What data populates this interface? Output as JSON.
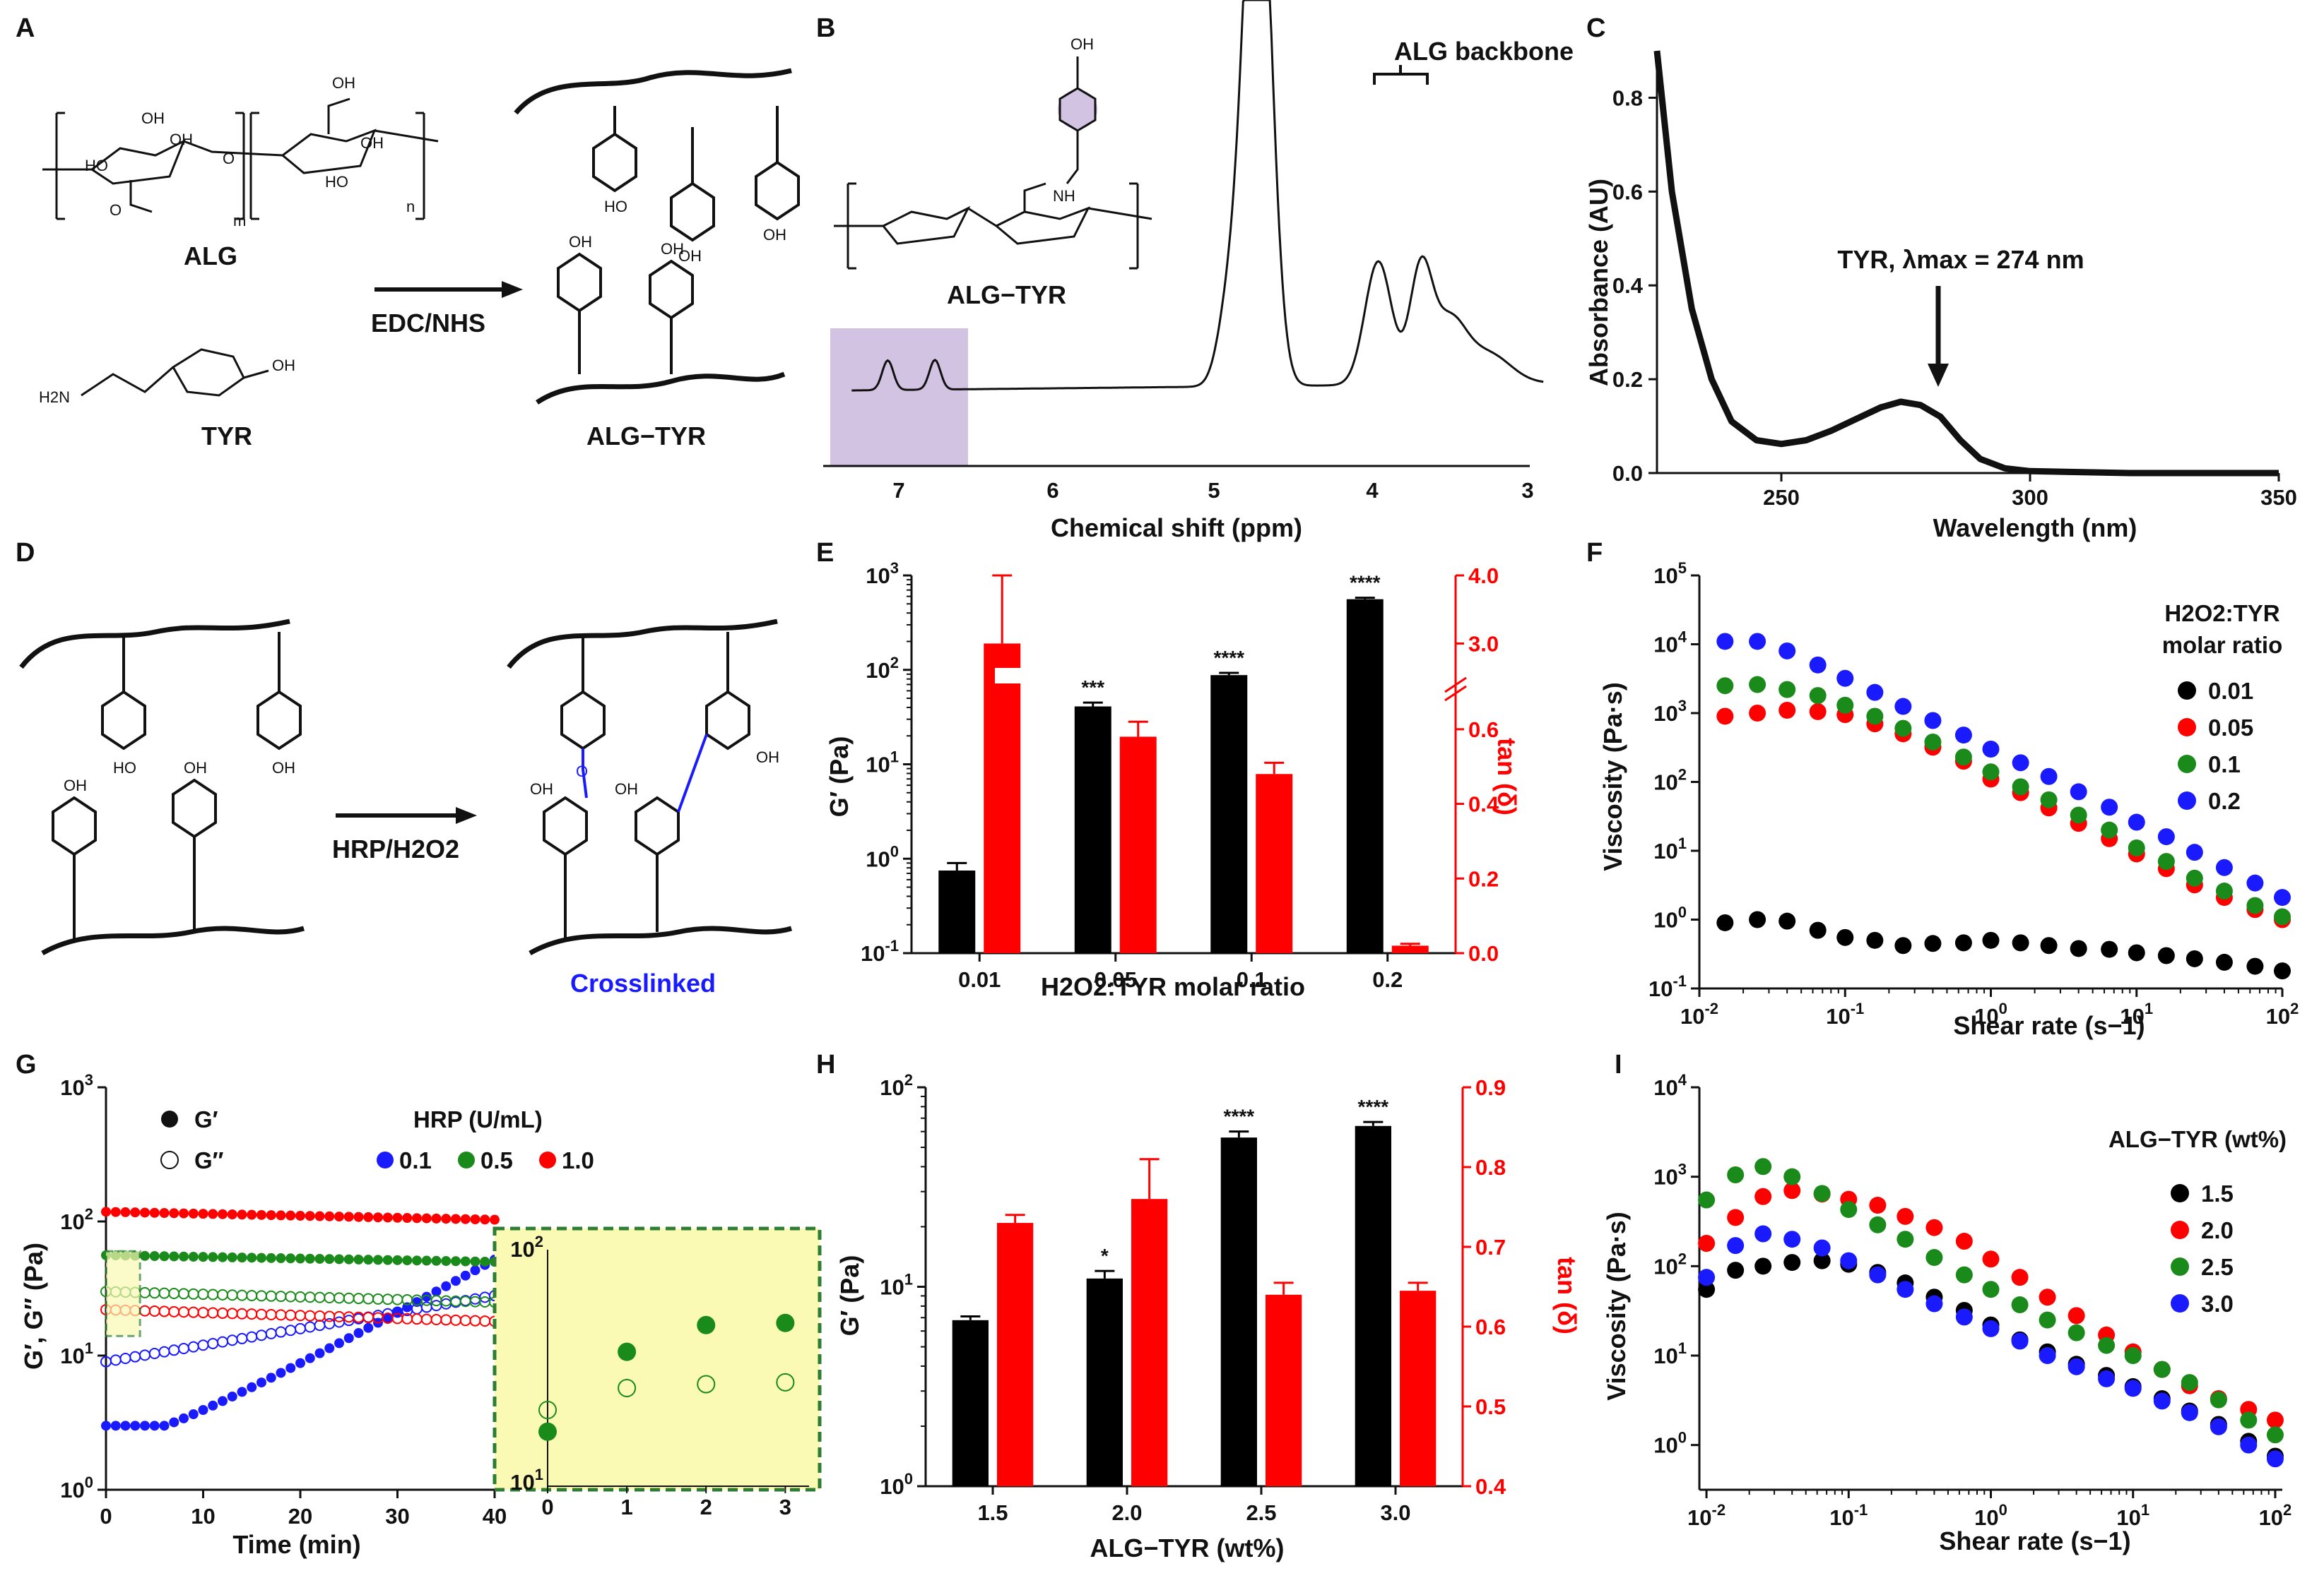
{
  "colors": {
    "black": "#000000",
    "red": "#ff0000",
    "green": "#1a8a1a",
    "blue": "#1a1aff",
    "purple": "#c8b4dc",
    "inset_bg": "#fafab4",
    "inset_border": "#2e7d32",
    "crosslink": "#1a1aff"
  },
  "labels": {
    "A": "A",
    "B": "B",
    "C": "C",
    "D": "D",
    "E": "E",
    "F": "F",
    "G": "G",
    "H": "H",
    "I": "I"
  },
  "panel_a": {
    "alg": "ALG",
    "tyr": "TYR",
    "reagent": "EDC/NHS",
    "product": "ALG−TYR",
    "oh": "OH",
    "ho": "HO",
    "o": "O",
    "h2n": "H2N",
    "m": "m",
    "n": "n"
  },
  "panel_b": {
    "annotation": "ALG backbone",
    "molecule": "ALG−TYR",
    "nh": "NH",
    "oh": "OH",
    "xlabel": "Chemical shift (ppm)",
    "ticks": [
      "7",
      "6",
      "5",
      "4",
      "3"
    ]
  },
  "panel_c": {
    "xlabel": "Wavelength (nm)",
    "ylabel": "Absorbance (AU)",
    "annotation": "TYR, λmax = 274 nm",
    "xticks": [
      "250",
      "300",
      "350"
    ],
    "yticks": [
      "0.0",
      "0.2",
      "0.4",
      "0.6",
      "0.8"
    ]
  },
  "panel_d": {
    "reagent": "HRP/H2O2",
    "crosslinked": "Crosslinked",
    "oh": "OH",
    "o": "O"
  },
  "panel_e": {
    "xlabel": "H2O2:TYR molar ratio",
    "ylabel": "G′ (Pa)",
    "ylabel_right": "tan (δ)",
    "stars": [
      "***",
      "****",
      "****"
    ]
  },
  "panel_f": {
    "xlabel": "Shear rate (s−1)",
    "ylabel": "Viscosity (Pa·s)",
    "legend_title_1": "H2O2:TYR",
    "legend_title_2": "molar ratio",
    "legend": [
      "0.01",
      "0.05",
      "0.1",
      "0.2"
    ]
  },
  "panel_g": {
    "xlabel": "Time (min)",
    "ylabel": "G′, G″ (Pa)",
    "gp": "G′",
    "gpp": "G″",
    "hrp_title": "HRP (U/mL)",
    "hrp": [
      "0.1",
      "0.5",
      "1.0"
    ],
    "xticks": [
      "0",
      "10",
      "20",
      "30",
      "40"
    ],
    "inset_xticks": [
      "0",
      "1",
      "2",
      "3"
    ]
  },
  "panel_h": {
    "xlabel": "ALG−TYR (wt%)",
    "ylabel": "G′ (Pa)",
    "ylabel_right": "tan (δ)",
    "stars": [
      "*",
      "****",
      "****"
    ]
  },
  "panel_i": {
    "xlabel": "Shear rate (s−1)",
    "ylabel": "Viscosity (Pa·s)",
    "legend_title": "ALG−TYR (wt%)",
    "legend": [
      "1.5",
      "2.0",
      "2.5",
      "3.0"
    ]
  },
  "chart_data": [
    {
      "id": "C",
      "type": "line",
      "title": "",
      "xlabel": "Wavelength (nm)",
      "ylabel": "Absorbance (AU)",
      "xlim": [
        225,
        350
      ],
      "ylim": [
        0,
        0.9
      ],
      "x": [
        225,
        228,
        232,
        236,
        240,
        245,
        250,
        255,
        260,
        265,
        270,
        274,
        278,
        282,
        286,
        290,
        295,
        300,
        320,
        350
      ],
      "y": [
        0.9,
        0.6,
        0.35,
        0.2,
        0.11,
        0.07,
        0.062,
        0.07,
        0.09,
        0.115,
        0.14,
        0.152,
        0.145,
        0.12,
        0.07,
        0.03,
        0.01,
        0.004,
        0.0,
        0.0
      ]
    },
    {
      "id": "E",
      "type": "bar",
      "categories": [
        "0.01",
        "0.05",
        "0.1",
        "0.2"
      ],
      "ylabel": "G′ (Pa)",
      "ylim_log": [
        0.1,
        1000
      ],
      "series": [
        {
          "name": "G′",
          "values": [
            0.75,
            41,
            88,
            560
          ],
          "errors": [
            0.15,
            4,
            5,
            20
          ]
        },
        {
          "name": "tan (δ)",
          "axis": "right",
          "values": [
            3.0,
            0.58,
            0.48,
            0.02
          ],
          "errors": [
            1.0,
            0.04,
            0.03,
            0.005
          ]
        }
      ],
      "right_ylim": [
        0.0,
        4.0
      ],
      "right_ticks": [
        "0.0",
        "0.2",
        "0.4",
        "0.6",
        "3.0",
        "4.0"
      ]
    },
    {
      "id": "F",
      "type": "scatter",
      "xlabel": "Shear rate (s−1)",
      "ylabel": "Viscosity (Pa·s)",
      "xlim_log": [
        0.01,
        100
      ],
      "ylim_log": [
        0.1,
        100000
      ],
      "x": [
        0.015,
        0.025,
        0.04,
        0.065,
        0.1,
        0.16,
        0.25,
        0.4,
        0.65,
        1,
        1.6,
        2.5,
        4,
        6.5,
        10,
        16,
        25,
        40,
        65,
        100
      ],
      "series": [
        {
          "name": "0.01",
          "values": [
            0.9,
            1.0,
            0.95,
            0.7,
            0.55,
            0.5,
            0.42,
            0.45,
            0.46,
            0.5,
            0.46,
            0.42,
            0.38,
            0.37,
            0.33,
            0.3,
            0.27,
            0.24,
            0.21,
            0.18
          ]
        },
        {
          "name": "0.05",
          "values": [
            900,
            1000,
            1100,
            1050,
            950,
            700,
            500,
            320,
            200,
            110,
            70,
            42,
            25,
            15,
            9,
            5.5,
            3.2,
            2.1,
            1.4,
            1.0
          ]
        },
        {
          "name": "0.1",
          "values": [
            2500,
            2600,
            2200,
            1800,
            1300,
            900,
            600,
            380,
            230,
            140,
            85,
            55,
            33,
            20,
            11,
            7,
            4,
            2.6,
            1.6,
            1.1
          ]
        },
        {
          "name": "0.2",
          "values": [
            11000,
            11000,
            8000,
            5000,
            3200,
            2000,
            1250,
            780,
            480,
            300,
            190,
            120,
            72,
            43,
            26,
            16,
            9.5,
            5.7,
            3.4,
            2.1
          ]
        }
      ]
    },
    {
      "id": "G",
      "type": "scatter",
      "xlabel": "Time (min)",
      "ylabel": "G′, G″ (Pa)",
      "xlim": [
        0,
        40
      ],
      "ylim_log": [
        1,
        1000
      ],
      "series": [
        {
          "name": "0.1 G′",
          "start": 3,
          "end": 52
        },
        {
          "name": "0.1 G″",
          "start": 9,
          "end": 28
        },
        {
          "name": "0.5 G′",
          "start": 56,
          "end": 50
        },
        {
          "name": "0.5 G″",
          "start": 30,
          "end": 25
        },
        {
          "name": "1.0 G′",
          "start": 118,
          "end": 103
        },
        {
          "name": "1.0 G″",
          "start": 22,
          "end": 18
        }
      ],
      "inset": {
        "x": [
          0,
          1,
          2,
          3
        ],
        "gp": [
          17,
          37,
          48,
          49
        ],
        "gpp": [
          21,
          26,
          27,
          27.5
        ]
      }
    },
    {
      "id": "H",
      "type": "bar",
      "categories": [
        "1.5",
        "2.0",
        "2.5",
        "3.0"
      ],
      "ylabel": "G′ (Pa)",
      "ylim_log": [
        1,
        100
      ],
      "series": [
        {
          "name": "G′",
          "values": [
            6.8,
            11,
            56,
            64
          ],
          "errors": [
            0.3,
            1.0,
            4,
            3
          ]
        },
        {
          "name": "tan (δ)",
          "axis": "right",
          "values": [
            0.73,
            0.76,
            0.64,
            0.645
          ],
          "errors": [
            0.01,
            0.05,
            0.015,
            0.01
          ]
        }
      ],
      "right_ylim": [
        0.4,
        0.9
      ]
    },
    {
      "id": "I",
      "type": "scatter",
      "xlabel": "Shear rate (s−1)",
      "ylabel": "Viscosity (Pa·s)",
      "xlim_log": [
        0.01,
        100
      ],
      "ylim_log": [
        0.3,
        10000
      ],
      "x": [
        0.01,
        0.016,
        0.025,
        0.04,
        0.065,
        0.1,
        0.16,
        0.25,
        0.4,
        0.65,
        1,
        1.6,
        2.5,
        4,
        6.5,
        10,
        16,
        25,
        40,
        65,
        100
      ],
      "series": [
        {
          "name": "1.5",
          "values": [
            55,
            90,
            100,
            110,
            115,
            105,
            85,
            65,
            45,
            32,
            22,
            15,
            11,
            8,
            6,
            4.5,
            3.3,
            2.4,
            1.7,
            1.1,
            0.75
          ]
        },
        {
          "name": "2.0",
          "values": [
            180,
            350,
            600,
            700,
            640,
            560,
            480,
            360,
            270,
            190,
            120,
            75,
            45,
            28,
            17,
            11,
            7,
            4.6,
            3.3,
            2.5,
            1.9
          ]
        },
        {
          "name": "2.5",
          "values": [
            550,
            1050,
            1300,
            1000,
            650,
            430,
            290,
            200,
            125,
            80,
            55,
            37,
            25,
            18,
            13,
            10,
            7,
            5,
            3.2,
            1.9,
            1.3
          ]
        },
        {
          "name": "3.0",
          "values": [
            75,
            170,
            230,
            200,
            160,
            115,
            80,
            55,
            38,
            27,
            20,
            14.5,
            10,
            7.5,
            5.5,
            4.3,
            3.1,
            2.3,
            1.6,
            1.0,
            0.7
          ]
        }
      ]
    }
  ]
}
